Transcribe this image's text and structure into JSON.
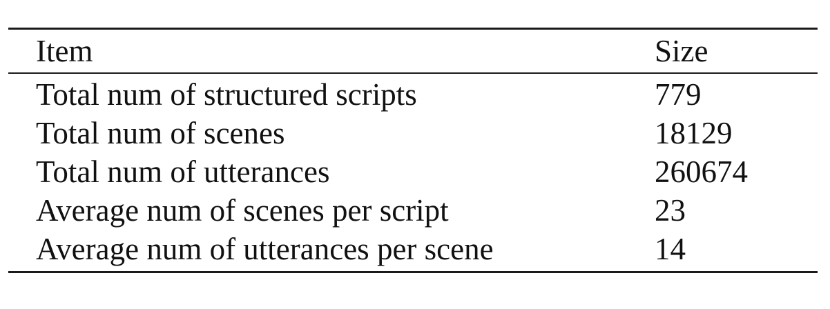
{
  "table": {
    "columns": [
      "Item",
      "Size"
    ],
    "rows": [
      {
        "item": "Total num of structured scripts",
        "size": "779"
      },
      {
        "item": "Total num of scenes",
        "size": "18129"
      },
      {
        "item": "Total num of utterances",
        "size": "260674"
      },
      {
        "item": "Average num of scenes per script",
        "size": "23"
      },
      {
        "item": "Average num of utterances per scene",
        "size": "14"
      }
    ]
  }
}
